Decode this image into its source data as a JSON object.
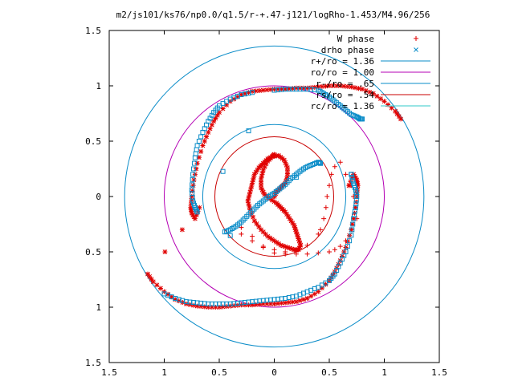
{
  "chart_data": {
    "type": "scatter",
    "title": "m2/js101/ks76/np0.0/q1.5/r-+.47-j121/logRho-1.453/M4.96/256",
    "xlabel": "",
    "ylabel": "",
    "xlim": [
      -1.5,
      1.5
    ],
    "ylim": [
      -1.5,
      1.5
    ],
    "grid": false,
    "legend_position": "top-right",
    "x_ticks": [
      {
        "v": -1.5,
        "label": "1.5"
      },
      {
        "v": -1.0,
        "label": "1"
      },
      {
        "v": -0.5,
        "label": "0.5"
      },
      {
        "v": 0,
        "label": "0"
      },
      {
        "v": 0.5,
        "label": "0.5"
      },
      {
        "v": 1.0,
        "label": "1"
      },
      {
        "v": 1.5,
        "label": "1.5"
      }
    ],
    "y_ticks": [
      {
        "v": 1.5,
        "label": "1.5"
      },
      {
        "v": 1.0,
        "label": "1"
      },
      {
        "v": 0.5,
        "label": "0.5"
      },
      {
        "v": 0,
        "label": "0"
      },
      {
        "v": -0.5,
        "label": "0.5"
      },
      {
        "v": -1.0,
        "label": "1"
      },
      {
        "v": -1.5,
        "label": "1.5"
      }
    ],
    "circles": [
      {
        "name": "r+/ro = 1.36",
        "r": 1.36,
        "color": "#0a8cc8"
      },
      {
        "name": "ro/ro = 1.00",
        "r": 1.0,
        "color": "#b400b4"
      },
      {
        "name": "r-/ro = .65",
        "r": 0.65,
        "color": "#0a8cc8"
      },
      {
        "name": "rs/ro = .54",
        "r": 0.54,
        "color": "#c80000"
      },
      {
        "name": "rc/ro = 1.36",
        "r": 1.36,
        "color": "#32c8c8"
      }
    ],
    "series": [
      {
        "name": "W phase",
        "marker": "+",
        "color": "#e00000",
        "inner": {
          "x": [
            -0.3,
            -0.2,
            -0.1,
            0.0,
            0.1,
            0.2,
            0.3,
            0.4,
            0.42,
            0.45,
            0.47,
            0.48,
            0.5,
            0.52,
            0.55,
            0.6,
            0.65,
            0.7,
            0.72,
            0.74,
            0.75,
            0.7,
            0.65,
            0.6,
            0.55,
            0.5,
            0.4,
            0.3,
            0.2,
            0.1,
            0.0,
            -0.1,
            -0.2,
            -0.3
          ],
          "y": [
            -0.28,
            -0.36,
            -0.46,
            -0.51,
            -0.52,
            -0.5,
            -0.44,
            -0.34,
            -0.3,
            -0.2,
            -0.1,
            0.0,
            0.1,
            0.2,
            0.27,
            0.31,
            0.2,
            0.1,
            0.0,
            -0.1,
            -0.2,
            -0.3,
            -0.4,
            -0.45,
            -0.48,
            -0.5,
            -0.51,
            -0.52,
            -0.52,
            -0.5,
            -0.48,
            -0.45,
            -0.4,
            -0.34
          ]
        },
        "arms": {
          "x": [
            1.15,
            1.1,
            1.0,
            0.9,
            0.8,
            0.7,
            0.6,
            0.5,
            0.4,
            0.3,
            0.2,
            0.1,
            0.0,
            -0.1,
            -0.2,
            -0.3,
            -0.4,
            -0.5,
            -0.55,
            -0.6,
            -0.65,
            -0.7,
            -0.73,
            -0.75,
            -0.76,
            -0.75,
            -0.72,
            -0.68,
            -1.15,
            -1.1,
            -1.0,
            -0.9,
            -0.8,
            -0.7,
            -0.6,
            -0.5,
            -0.4,
            -0.3,
            -0.2,
            -0.1,
            0.0,
            0.1,
            0.2,
            0.3,
            0.4,
            0.5,
            0.55,
            0.6,
            0.65,
            0.7,
            0.73,
            0.75,
            0.76,
            0.75,
            0.72,
            0.68
          ],
          "y": [
            0.7,
            0.77,
            0.86,
            0.93,
            0.97,
            0.99,
            1.0,
            1.0,
            0.99,
            0.98,
            0.98,
            0.97,
            0.97,
            0.96,
            0.95,
            0.92,
            0.86,
            0.76,
            0.68,
            0.58,
            0.46,
            0.3,
            0.15,
            0.0,
            -0.1,
            -0.15,
            -0.2,
            -0.1,
            -0.7,
            -0.77,
            -0.86,
            -0.93,
            -0.97,
            -0.99,
            -1.0,
            -1.0,
            -0.99,
            -0.98,
            -0.98,
            -0.97,
            -0.97,
            -0.96,
            -0.95,
            -0.92,
            -0.86,
            -0.76,
            -0.68,
            -0.58,
            -0.46,
            -0.3,
            -0.15,
            0.0,
            0.1,
            0.15,
            0.2,
            0.1
          ]
        },
        "band": {
          "x": [
            0.0,
            0.02,
            0.06,
            0.1,
            0.12,
            0.12,
            0.09,
            0.04,
            -0.02,
            -0.06,
            -0.1,
            -0.12,
            -0.12,
            -0.09,
            -0.04,
            0.02,
            0.06,
            0.1,
            0.14,
            0.18,
            0.2,
            0.22,
            0.24,
            0.22,
            0.18,
            0.12,
            0.06,
            0.0,
            -0.06,
            -0.12,
            -0.18,
            -0.22,
            -0.24,
            -0.22,
            -0.2,
            -0.18,
            -0.14,
            -0.1,
            -0.06,
            -0.02,
            0.0
          ],
          "y": [
            0.0,
            0.04,
            0.08,
            0.12,
            0.18,
            0.26,
            0.33,
            0.37,
            0.36,
            0.32,
            0.24,
            0.16,
            0.08,
            0.02,
            -0.02,
            -0.06,
            -0.1,
            -0.14,
            -0.2,
            -0.26,
            -0.32,
            -0.38,
            -0.44,
            -0.48,
            -0.48,
            -0.46,
            -0.44,
            -0.4,
            -0.36,
            -0.3,
            -0.22,
            -0.12,
            -0.04,
            0.04,
            0.12,
            0.2,
            0.26,
            0.3,
            0.34,
            0.36,
            0.38
          ]
        }
      },
      {
        "name": "drho phase",
        "marker": "x",
        "color": "#0a8cc8",
        "band": {
          "x": [
            -0.45,
            -0.4,
            -0.35,
            -0.3,
            -0.25,
            -0.2,
            -0.15,
            -0.1,
            -0.05,
            0.0,
            0.05,
            0.1,
            0.15,
            0.2,
            0.25,
            0.3,
            0.35,
            0.4,
            0.42
          ],
          "y": [
            -0.32,
            -0.3,
            -0.27,
            -0.23,
            -0.18,
            -0.13,
            -0.08,
            -0.04,
            0.0,
            0.03,
            0.07,
            0.11,
            0.16,
            0.2,
            0.24,
            0.27,
            0.29,
            0.31,
            0.3
          ]
        },
        "arms": {
          "x": [
            -0.2,
            -0.3,
            -0.4,
            -0.5,
            -0.55,
            -0.6,
            -0.65,
            -0.7,
            -0.72,
            -0.74,
            -0.75,
            -0.74,
            -0.72,
            -0.7,
            0.0,
            0.1,
            0.2,
            0.3,
            0.4,
            0.45,
            0.5,
            0.55,
            0.6,
            0.65,
            0.7,
            0.75,
            0.78,
            0.8,
            -1.0,
            -0.9,
            -0.8,
            -0.7,
            -0.6,
            -0.5,
            -0.4,
            -0.3,
            -0.2,
            -0.1,
            0.0,
            0.1,
            0.2,
            0.3,
            0.4,
            0.5,
            0.55,
            0.6,
            0.65,
            0.7,
            0.72,
            0.74,
            0.75,
            0.74,
            0.72,
            0.7
          ],
          "y": [
            0.94,
            0.92,
            0.88,
            0.82,
            0.76,
            0.68,
            0.58,
            0.46,
            0.35,
            0.2,
            0.06,
            -0.04,
            -0.1,
            -0.14,
            0.96,
            0.97,
            0.97,
            0.97,
            0.96,
            0.93,
            0.9,
            0.86,
            0.82,
            0.78,
            0.74,
            0.72,
            0.7,
            0.7,
            -0.88,
            -0.92,
            -0.95,
            -0.96,
            -0.97,
            -0.97,
            -0.97,
            -0.96,
            -0.95,
            -0.94,
            -0.93,
            -0.92,
            -0.9,
            -0.86,
            -0.82,
            -0.76,
            -0.7,
            -0.6,
            -0.5,
            -0.35,
            -0.2,
            -0.1,
            0.0,
            0.06,
            0.12,
            0.2
          ]
        }
      }
    ]
  }
}
